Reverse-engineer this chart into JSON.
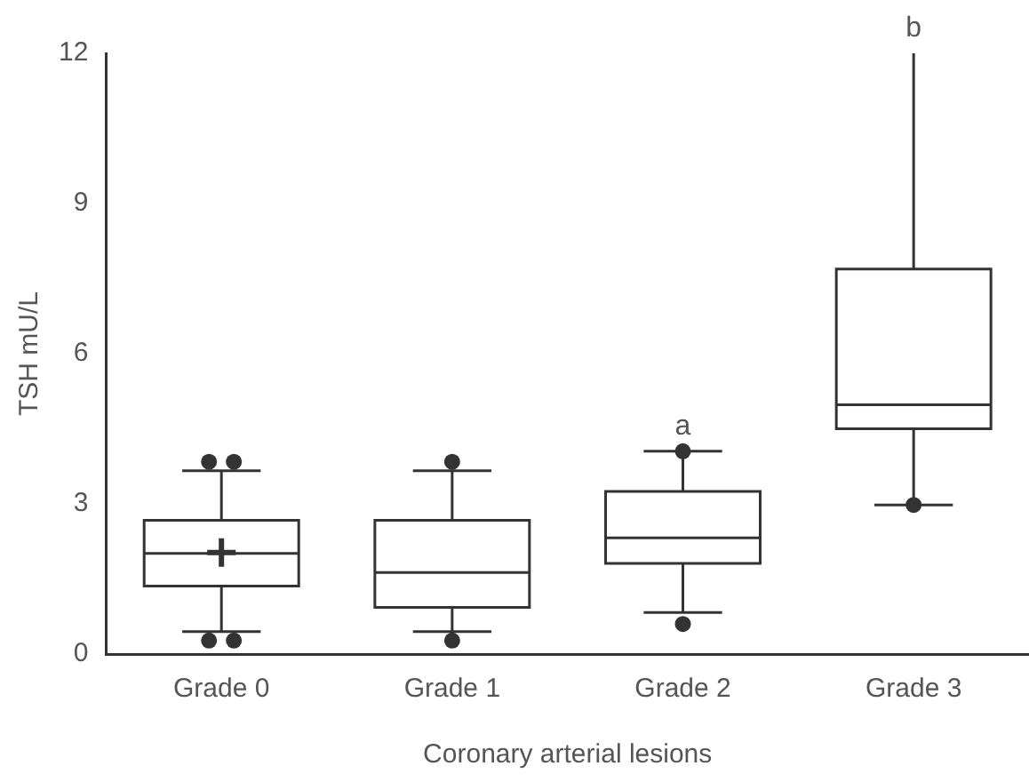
{
  "chart_data": {
    "type": "box",
    "xlabel": "Coronary arterial lesions",
    "ylabel": "TSH mU/L",
    "categories": [
      "Grade 0",
      "Grade 1",
      "Grade 2",
      "Grade 3"
    ],
    "boxes": [
      {
        "low": 0.45,
        "q1": 1.36,
        "median": 2.01,
        "q3": 2.67,
        "high": 3.66,
        "mean": 2.03,
        "outliers": [
          3.84,
          3.84,
          0.27,
          0.27
        ]
      },
      {
        "low": 0.45,
        "q1": 0.93,
        "median": 1.63,
        "q3": 2.67,
        "high": 3.66,
        "outliers": [
          3.84,
          0.27
        ]
      },
      {
        "low": 0.83,
        "q1": 1.81,
        "median": 2.32,
        "q3": 3.25,
        "high": 4.05,
        "outliers": [
          4.05,
          0.6
        ]
      },
      {
        "low": 2.98,
        "q1": 4.5,
        "median": 4.98,
        "q3": 7.69,
        "high": 12,
        "outliers": [
          2.98
        ]
      }
    ],
    "ylim": [
      0,
      12
    ],
    "yticks": [
      0,
      3,
      6,
      9,
      12
    ],
    "annotations": [
      {
        "text": "a",
        "x": "Grade 2",
        "y": 4.05
      },
      {
        "text": "b",
        "x": "Grade 3",
        "y": 12
      }
    ]
  }
}
